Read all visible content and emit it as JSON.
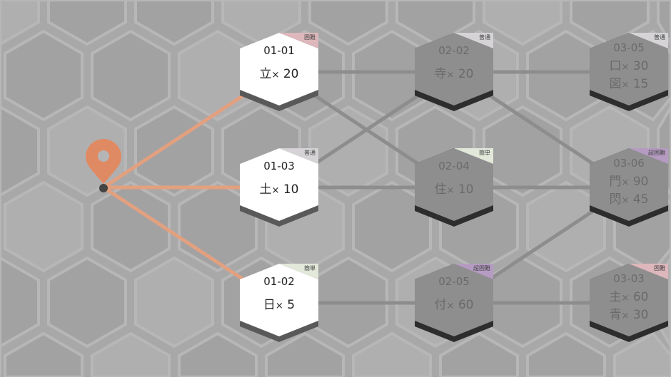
{
  "colors": {
    "background": "#a9a8a9",
    "path_active": "#e3a07f",
    "path_inactive": "#8e8d8e",
    "node_open": "#ffffff",
    "node_locked": "#8f8e8f",
    "pin": "#e08a63",
    "tag": {
      "困難": "#ddb7bb",
      "普通": "#d5d3d6",
      "簡単": "#e2e8da",
      "超困難": "#b59bc2"
    }
  },
  "start_marker": {
    "icon": "map-pin-icon"
  },
  "stages": [
    {
      "id": "01-01",
      "state": "open",
      "difficulty": "困難",
      "requirements": [
        {
          "glyph": "立",
          "count": "20"
        }
      ]
    },
    {
      "id": "01-03",
      "state": "open",
      "difficulty": "普通",
      "requirements": [
        {
          "glyph": "土",
          "count": "10"
        }
      ]
    },
    {
      "id": "01-02",
      "state": "open",
      "difficulty": "簡単",
      "requirements": [
        {
          "glyph": "日",
          "count": "5"
        }
      ]
    },
    {
      "id": "02-02",
      "state": "locked",
      "difficulty": "普通",
      "requirements": [
        {
          "glyph": "寺",
          "count": "20"
        }
      ]
    },
    {
      "id": "02-04",
      "state": "locked",
      "difficulty": "簡単",
      "requirements": [
        {
          "glyph": "住",
          "count": "10"
        }
      ]
    },
    {
      "id": "02-05",
      "state": "locked",
      "difficulty": "超困難",
      "requirements": [
        {
          "glyph": "付",
          "count": "60"
        }
      ]
    },
    {
      "id": "03-05",
      "state": "locked",
      "difficulty": "普通",
      "requirements": [
        {
          "glyph": "口",
          "count": "30"
        },
        {
          "glyph": "図",
          "count": "15"
        }
      ]
    },
    {
      "id": "03-06",
      "state": "locked",
      "difficulty": "超困難",
      "requirements": [
        {
          "glyph": "門",
          "count": "90"
        },
        {
          "glyph": "閃",
          "count": "45"
        }
      ]
    },
    {
      "id": "03-03",
      "state": "locked",
      "difficulty": "困難",
      "requirements": [
        {
          "glyph": "主",
          "count": "60"
        },
        {
          "glyph": "青",
          "count": "30"
        }
      ]
    }
  ],
  "multiplier": "×",
  "connections": [
    [
      "start",
      "01-01"
    ],
    [
      "start",
      "01-03"
    ],
    [
      "start",
      "01-02"
    ],
    [
      "01-01",
      "02-02"
    ],
    [
      "01-01",
      "02-04"
    ],
    [
      "01-03",
      "02-02"
    ],
    [
      "01-03",
      "02-04"
    ],
    [
      "01-02",
      "02-05"
    ],
    [
      "02-02",
      "03-05"
    ],
    [
      "02-02",
      "03-06"
    ],
    [
      "02-04",
      "03-06"
    ],
    [
      "02-05",
      "03-06"
    ],
    [
      "02-05",
      "03-03"
    ]
  ]
}
